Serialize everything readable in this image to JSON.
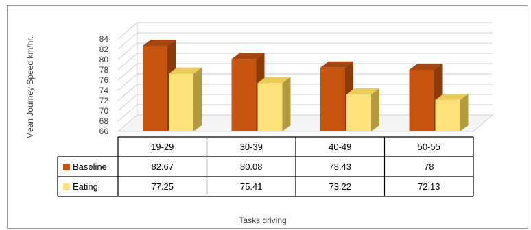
{
  "chart_data": {
    "type": "bar",
    "ylabel": "Mean Journey Speed  km/hr.",
    "xlabel": "Tasks driving",
    "categories": [
      "19-29",
      "30-39",
      "40-49",
      "50-55"
    ],
    "ylim": [
      66,
      84
    ],
    "yticks": [
      "66",
      "68",
      "70",
      "72",
      "74",
      "76",
      "78",
      "80",
      "82",
      "84"
    ],
    "grid": true,
    "legend_placement": "data-table-left",
    "series": [
      {
        "name": "Baseline",
        "values": [
          82.67,
          80.08,
          78.43,
          78
        ],
        "labels": [
          "82.67",
          "80.08",
          "78.43",
          "78"
        ],
        "color": "#c6540f",
        "side_color": "#8e3a08",
        "top_color": "#a54510"
      },
      {
        "name": "Eating",
        "values": [
          77.25,
          75.41,
          73.22,
          72.13
        ],
        "labels": [
          "77.25",
          "75.41",
          "73.22",
          "72.13"
        ],
        "color": "#fde27a",
        "side_color": "#b39a3e",
        "top_color": "#e9cc5a"
      }
    ]
  }
}
